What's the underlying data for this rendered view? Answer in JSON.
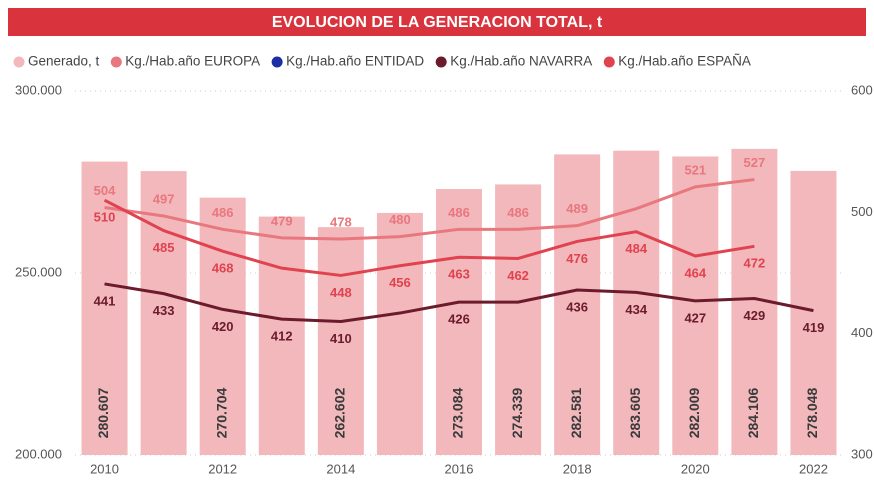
{
  "chart_data": {
    "type": "bar_line",
    "title": "EVOLUCION DE LA GENERACION TOTAL, t",
    "categories": [
      "2010",
      null,
      "2012",
      null,
      "2014",
      null,
      "2016",
      null,
      "2018",
      null,
      "2020",
      null,
      "2022"
    ],
    "series": [
      {
        "name": "Generado, t",
        "color": "#f2b8bc",
        "type": "bar",
        "values": [
          280607,
          278000,
          270704,
          265500,
          262602,
          266500,
          273084,
          274339,
          282581,
          283605,
          282009,
          284106,
          278048
        ],
        "value_labels": [
          "280.607",
          null,
          "270.704",
          null,
          "262.602",
          null,
          "273.084",
          "274.339",
          "282.581",
          "283.605",
          "282.009",
          "284.106",
          "278.048"
        ]
      },
      {
        "name": "Kg./Hab.año EUROPA",
        "color": "#e8777e",
        "type": "line",
        "axis": "y2",
        "values": [
          504,
          497,
          486,
          479,
          478,
          480,
          486,
          486,
          489,
          503,
          521,
          527,
          null
        ],
        "value_labels": [
          "504",
          "497",
          "486",
          "479",
          "478",
          "480",
          "486",
          "486",
          "489",
          null,
          "521",
          "527",
          null
        ]
      },
      {
        "name": "Kg./Hab.año ENTIDAD",
        "color": "#1c2ea6",
        "type": "line",
        "axis": "y2",
        "values": [
          null,
          null,
          null,
          null,
          null,
          null,
          null,
          null,
          null,
          null,
          null,
          null,
          null
        ]
      },
      {
        "name": "Kg./Hab.año NAVARRA",
        "color": "#6b1b2b",
        "type": "line",
        "axis": "y2",
        "values": [
          441,
          433,
          420,
          412,
          410,
          417,
          426,
          426,
          436,
          434,
          427,
          429,
          419
        ],
        "value_labels": [
          "441",
          "433",
          "420",
          "412",
          "410",
          null,
          "426",
          null,
          "436",
          "434",
          "427",
          "429",
          "419"
        ]
      },
      {
        "name": "Kg./Hab.año ESPAÑA",
        "color": "#e0434f",
        "type": "line",
        "axis": "y2",
        "values": [
          510,
          485,
          468,
          454,
          448,
          456,
          463,
          462,
          476,
          484,
          464,
          472,
          null
        ],
        "value_labels": [
          "510",
          "485",
          "468",
          null,
          "448",
          "456",
          "463",
          "462",
          "476",
          "484",
          "464",
          "472",
          null
        ]
      }
    ],
    "ylim": [
      200000,
      300000
    ],
    "yticks": [
      {
        "value": 200000,
        "label": "200.000"
      },
      {
        "value": 250000,
        "label": "250.000"
      },
      {
        "value": 300000,
        "label": "300.000"
      }
    ],
    "y2lim": [
      300,
      600
    ],
    "y2ticks": [
      300,
      400,
      500,
      600
    ],
    "grid": true,
    "legend": "top"
  }
}
